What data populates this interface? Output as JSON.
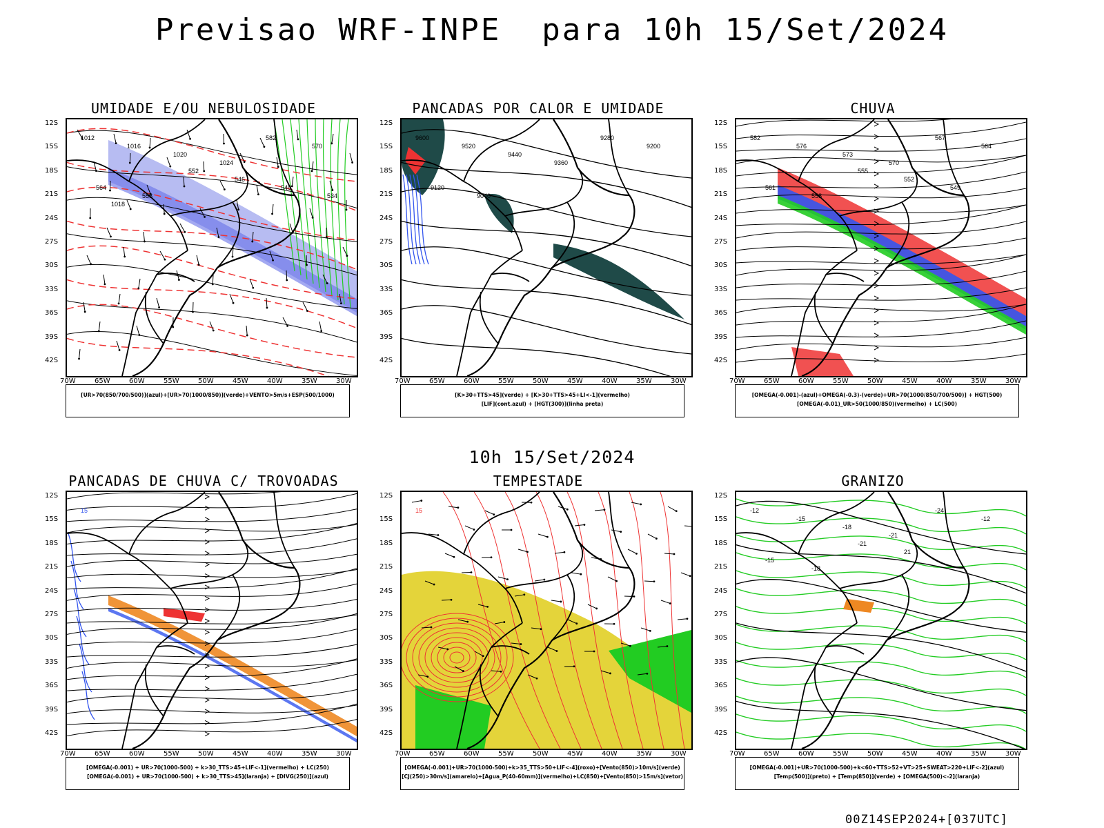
{
  "title": "Previsao WRF-INPE  para 10h 15/Set/2024",
  "subtitle": "10h 15/Set/2024",
  "footer": "00Z14SEP2024+[037UTC]",
  "lat_labels": [
    "12S",
    "15S",
    "18S",
    "21S",
    "24S",
    "27S",
    "30S",
    "33S",
    "36S",
    "39S",
    "42S"
  ],
  "lon_labels": [
    "70W",
    "65W",
    "60W",
    "55W",
    "50W",
    "45W",
    "40W",
    "35W",
    "30W"
  ],
  "colors": {
    "blue": "#3355ee",
    "green": "#22cc22",
    "red": "#ee3333",
    "orange": "#ee8822",
    "yellow": "#e4d43a",
    "darkgreen": "#1f4a48",
    "lavender": "#aab0f0"
  },
  "panels": [
    {
      "title": "UMIDADE E/OU NEBULOSIDADE",
      "legend": [
        "[UR>70(850/700/500)](azul)+[UR>70(1000/850)](verde)+VENTO>5m/s+ESP(500/1000)"
      ],
      "contour_labels": [
        "1012",
        "1016",
        "1020",
        "1024",
        "582",
        "570",
        "564",
        "558",
        "552",
        "546",
        "540",
        "534",
        "1018"
      ]
    },
    {
      "title": "PANCADAS POR CALOR E UMIDADE",
      "legend": [
        "[K>30+TTS>45](verde) + [K>30+TTS>45+LI<-1](vermelho)",
        "[LIF](cont.azul) + [HGT(300)](linha preta)"
      ],
      "contour_labels": [
        "9600",
        "9520",
        "9440",
        "9360",
        "9280",
        "9200",
        "9120",
        "9040",
        "9600",
        "9520",
        "9440",
        "9360",
        "9280",
        "9200",
        "9120",
        "9040"
      ]
    },
    {
      "title": "CHUVA",
      "legend": [
        "[OMEGA(-0.001)-(azul)+OMEGA(-0.3)-(verde)+UR>70(1000/850/700/500)] + HGT(500)",
        "[OMEGA(-0.01)_UR>50(1000/850)(vermelho) + LC(500)"
      ],
      "contour_labels": [
        "582",
        "576",
        "573",
        "570",
        "567",
        "564",
        "561",
        "558",
        "555",
        "552",
        "549"
      ]
    },
    {
      "title": "PANCADAS DE CHUVA C/ TROVOADAS",
      "legend": [
        "[OMEGA(-0.001) + UR>70(1000-500) + k>30_TTS>45+LIF<-1](vermelho) + LC(250)",
        "[OMEGA(-0.001) + UR>70(1000-500) + k>30_TTS>45](laranja) + [DIVG(250)](azul)"
      ],
      "contour_labels": [
        "15"
      ]
    },
    {
      "title": "TEMPESTADE",
      "legend": [
        "[OMEGA(-0.001)+UR>70(1000-500)+k>35_TTS>50+LIF<-4](roxo)+[Vento(850)>10m/s](verde)",
        "[CJ(250)>30m/s](amarelo)+[Agua_P(40-60mm)](vermelho)+LC(850)+[Vento(850)>15m/s](vetor)"
      ],
      "contour_labels": [
        "15"
      ]
    },
    {
      "title": "GRANIZO",
      "legend": [
        "[OMEGA(-0.001)+UR>70(1000-500)+k<60+TTS>52+VT>25+SWEAT>220+LIF<-2](azul)",
        "[Temp(500)](preto) + [Temp(850)](verde) + [OMEGA(500)<-2](laranja)"
      ],
      "contour_labels": [
        "-12",
        "-15",
        "-18",
        "-21",
        "-24",
        "-12",
        "-15",
        "-18",
        "-21",
        "21"
      ]
    }
  ]
}
